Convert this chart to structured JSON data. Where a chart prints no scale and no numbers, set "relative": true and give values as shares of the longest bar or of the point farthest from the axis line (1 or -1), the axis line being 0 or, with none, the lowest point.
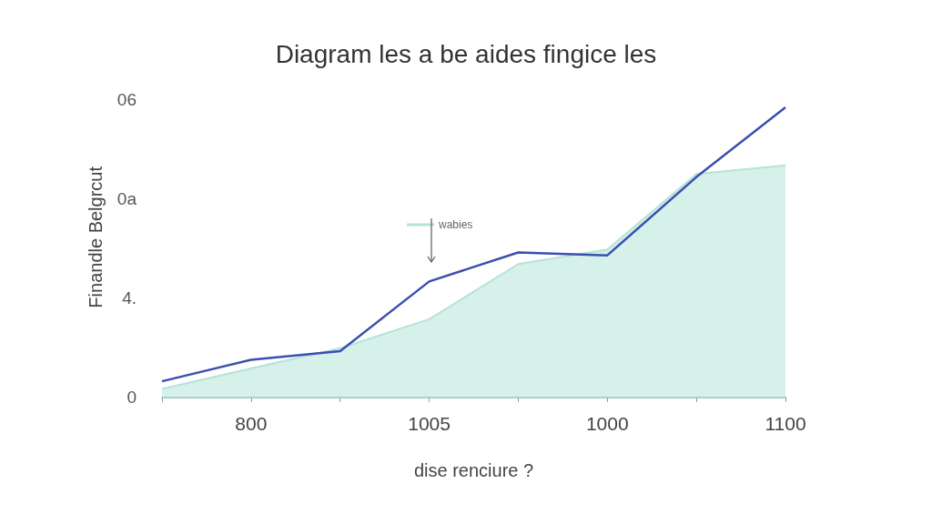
{
  "chart_data": {
    "type": "area",
    "title": "Diagram les a be aides fingice les",
    "xlabel": "dise renciure ?",
    "ylabel": "Finandle Belgrcut",
    "relative": true,
    "categories": [
      null,
      "800",
      null,
      "1005",
      null,
      "1000",
      null,
      "1100"
    ],
    "series": [
      {
        "name": "wabies",
        "color": "#b5e3d8",
        "values": [
          0.03,
          0.1,
          0.17,
          0.27,
          0.46,
          0.51,
          0.77,
          0.8
        ]
      },
      {
        "type": "line",
        "color": "#3a4fb0",
        "values": [
          0.056,
          0.13,
          0.16,
          0.4,
          0.5,
          0.49,
          0.76,
          1
        ]
      }
    ],
    "annotations": [
      "0",
      "4.",
      "0a",
      "06"
    ],
    "legend": "top",
    "grid": false,
    "marker": "none"
  }
}
